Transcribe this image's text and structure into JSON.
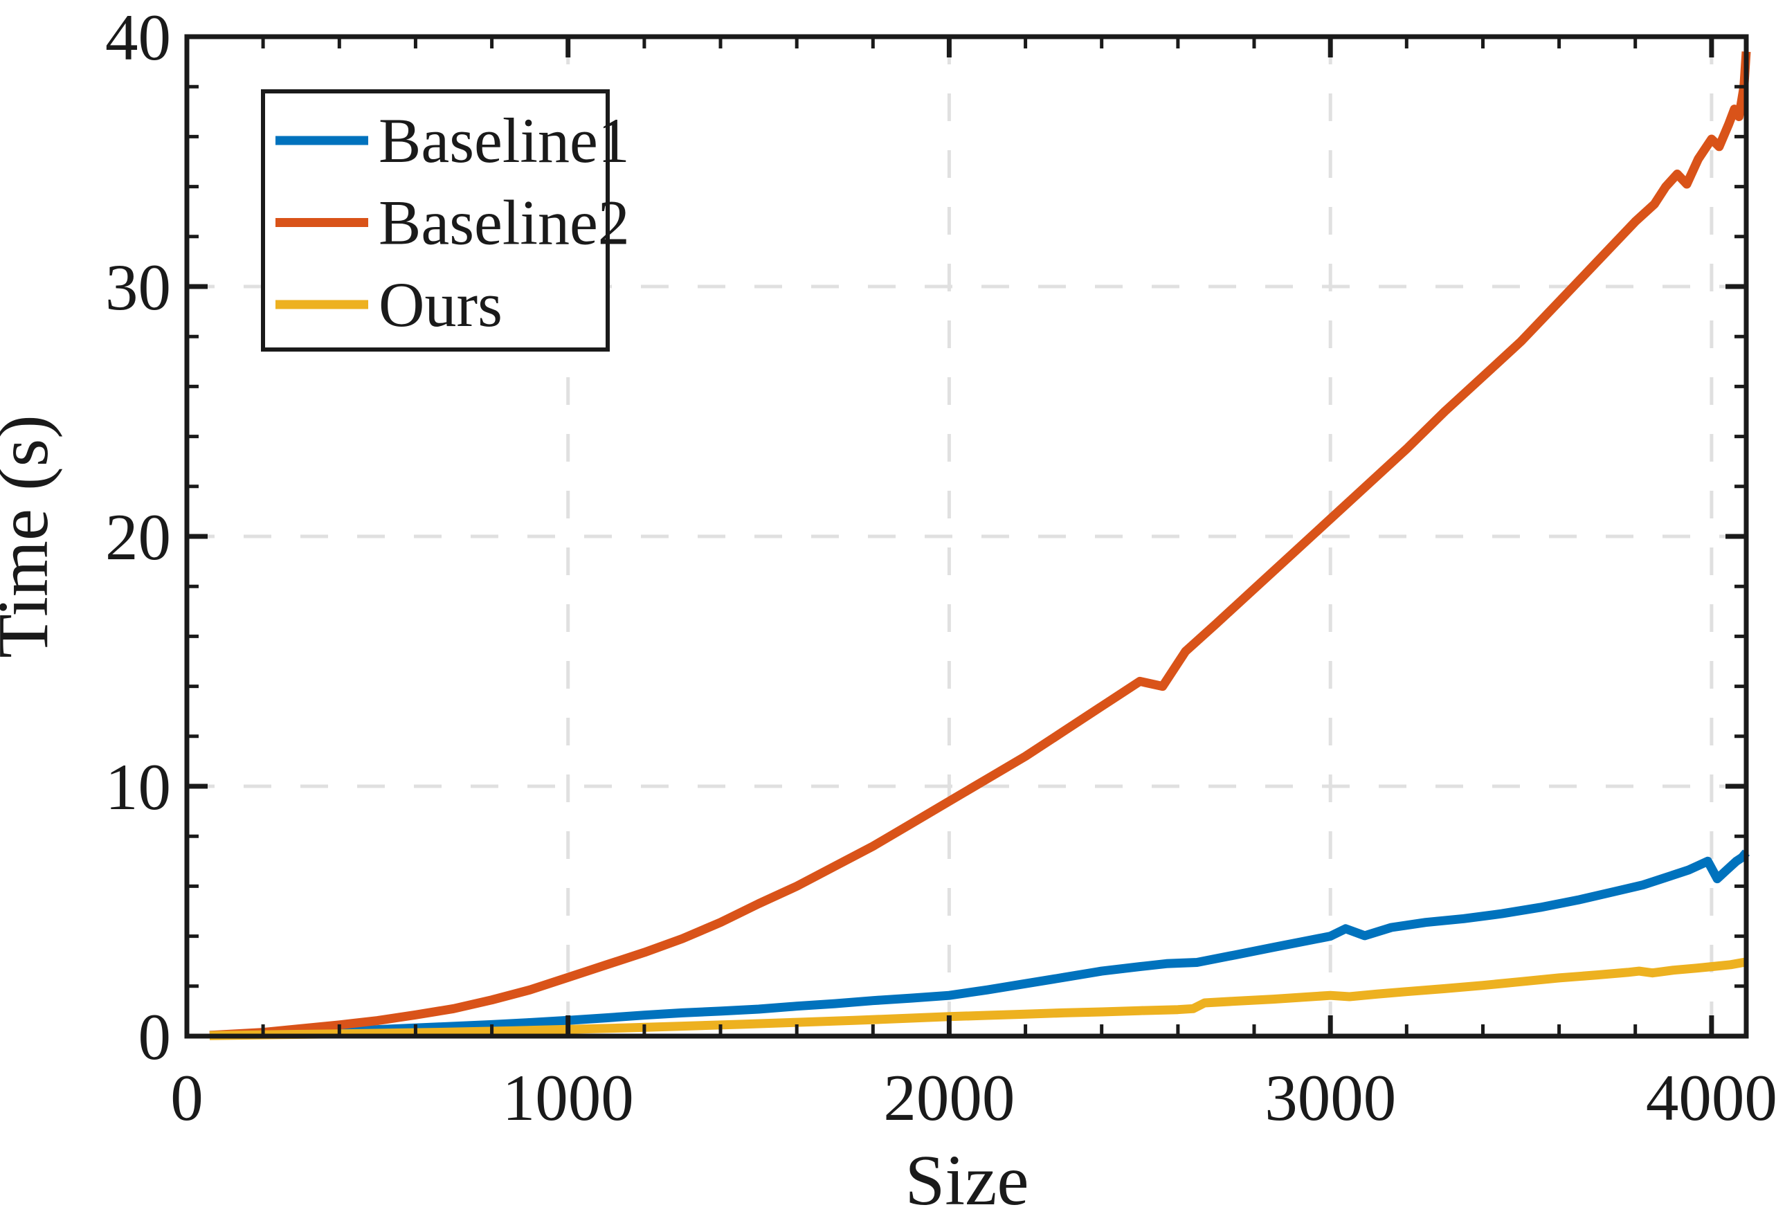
{
  "chart_data": {
    "type": "line",
    "title": "",
    "xlabel": "Size",
    "ylabel": "Time (s)",
    "xlim": [
      0,
      4091
    ],
    "ylim": [
      0,
      40
    ],
    "xticks": [
      0,
      1000,
      2000,
      3000,
      4000
    ],
    "yticks": [
      0,
      10,
      20,
      30,
      40
    ],
    "minor_x_step": 200,
    "minor_y_step": 2,
    "grid": "dashed-major-both",
    "background": "#ffffff",
    "axis_color": "#1a1a1a",
    "grid_color": "#e0e0e0",
    "legend": {
      "position": "top-left",
      "entries": [
        "Baseline1",
        "Baseline2",
        "Ours"
      ]
    },
    "series": [
      {
        "name": "Baseline1",
        "color": "#0072BD",
        "points": [
          [
            60,
            0.03
          ],
          [
            200,
            0.08
          ],
          [
            350,
            0.16
          ],
          [
            500,
            0.26
          ],
          [
            650,
            0.36
          ],
          [
            800,
            0.46
          ],
          [
            900,
            0.54
          ],
          [
            1000,
            0.63
          ],
          [
            1100,
            0.73
          ],
          [
            1200,
            0.84
          ],
          [
            1300,
            0.93
          ],
          [
            1400,
            1.0
          ],
          [
            1500,
            1.08
          ],
          [
            1600,
            1.2
          ],
          [
            1700,
            1.3
          ],
          [
            1800,
            1.42
          ],
          [
            1900,
            1.52
          ],
          [
            2000,
            1.63
          ],
          [
            2100,
            1.85
          ],
          [
            2200,
            2.1
          ],
          [
            2300,
            2.35
          ],
          [
            2400,
            2.6
          ],
          [
            2500,
            2.78
          ],
          [
            2570,
            2.9
          ],
          [
            2650,
            2.95
          ],
          [
            2750,
            3.25
          ],
          [
            2850,
            3.55
          ],
          [
            2950,
            3.85
          ],
          [
            3000,
            4.0
          ],
          [
            3040,
            4.3
          ],
          [
            3090,
            4.02
          ],
          [
            3160,
            4.35
          ],
          [
            3250,
            4.55
          ],
          [
            3350,
            4.7
          ],
          [
            3450,
            4.9
          ],
          [
            3550,
            5.15
          ],
          [
            3650,
            5.45
          ],
          [
            3750,
            5.8
          ],
          [
            3820,
            6.05
          ],
          [
            3880,
            6.35
          ],
          [
            3940,
            6.65
          ],
          [
            3990,
            7.0
          ],
          [
            4015,
            6.3
          ],
          [
            4040,
            6.65
          ],
          [
            4065,
            7.0
          ],
          [
            4080,
            7.15
          ],
          [
            4091,
            7.35
          ]
        ]
      },
      {
        "name": "Baseline2",
        "color": "#D95319",
        "points": [
          [
            60,
            0.03
          ],
          [
            200,
            0.15
          ],
          [
            300,
            0.3
          ],
          [
            400,
            0.45
          ],
          [
            500,
            0.62
          ],
          [
            600,
            0.85
          ],
          [
            700,
            1.1
          ],
          [
            800,
            1.45
          ],
          [
            900,
            1.85
          ],
          [
            1000,
            2.35
          ],
          [
            1100,
            2.85
          ],
          [
            1200,
            3.35
          ],
          [
            1300,
            3.9
          ],
          [
            1400,
            4.55
          ],
          [
            1500,
            5.3
          ],
          [
            1600,
            6.0
          ],
          [
            1700,
            6.8
          ],
          [
            1800,
            7.6
          ],
          [
            1900,
            8.5
          ],
          [
            2000,
            9.4
          ],
          [
            2100,
            10.3
          ],
          [
            2200,
            11.2
          ],
          [
            2300,
            12.2
          ],
          [
            2400,
            13.2
          ],
          [
            2500,
            14.2
          ],
          [
            2560,
            14.0
          ],
          [
            2620,
            15.4
          ],
          [
            2700,
            16.5
          ],
          [
            2800,
            17.9
          ],
          [
            2900,
            19.3
          ],
          [
            3000,
            20.7
          ],
          [
            3100,
            22.1
          ],
          [
            3200,
            23.5
          ],
          [
            3300,
            25.0
          ],
          [
            3400,
            26.4
          ],
          [
            3500,
            27.8
          ],
          [
            3600,
            29.4
          ],
          [
            3700,
            31.0
          ],
          [
            3800,
            32.6
          ],
          [
            3850,
            33.3
          ],
          [
            3880,
            34.0
          ],
          [
            3910,
            34.5
          ],
          [
            3935,
            34.1
          ],
          [
            3965,
            35.1
          ],
          [
            4000,
            35.9
          ],
          [
            4020,
            35.6
          ],
          [
            4045,
            36.5
          ],
          [
            4060,
            37.1
          ],
          [
            4072,
            36.8
          ],
          [
            4085,
            38.0
          ],
          [
            4091,
            39.4
          ]
        ]
      },
      {
        "name": "Ours",
        "color": "#EDB120",
        "points": [
          [
            60,
            0.02
          ],
          [
            250,
            0.06
          ],
          [
            450,
            0.1
          ],
          [
            650,
            0.15
          ],
          [
            850,
            0.21
          ],
          [
            1000,
            0.27
          ],
          [
            1150,
            0.33
          ],
          [
            1300,
            0.4
          ],
          [
            1450,
            0.47
          ],
          [
            1600,
            0.55
          ],
          [
            1750,
            0.63
          ],
          [
            1900,
            0.72
          ],
          [
            2000,
            0.78
          ],
          [
            2100,
            0.83
          ],
          [
            2200,
            0.88
          ],
          [
            2300,
            0.93
          ],
          [
            2400,
            0.97
          ],
          [
            2500,
            1.02
          ],
          [
            2600,
            1.06
          ],
          [
            2640,
            1.1
          ],
          [
            2670,
            1.33
          ],
          [
            2750,
            1.4
          ],
          [
            2850,
            1.48
          ],
          [
            2950,
            1.58
          ],
          [
            3000,
            1.63
          ],
          [
            3050,
            1.58
          ],
          [
            3120,
            1.68
          ],
          [
            3200,
            1.78
          ],
          [
            3300,
            1.9
          ],
          [
            3400,
            2.03
          ],
          [
            3500,
            2.18
          ],
          [
            3600,
            2.33
          ],
          [
            3700,
            2.45
          ],
          [
            3780,
            2.55
          ],
          [
            3810,
            2.6
          ],
          [
            3845,
            2.53
          ],
          [
            3900,
            2.64
          ],
          [
            3960,
            2.72
          ],
          [
            4000,
            2.78
          ],
          [
            4050,
            2.86
          ],
          [
            4091,
            2.97
          ]
        ]
      }
    ]
  }
}
